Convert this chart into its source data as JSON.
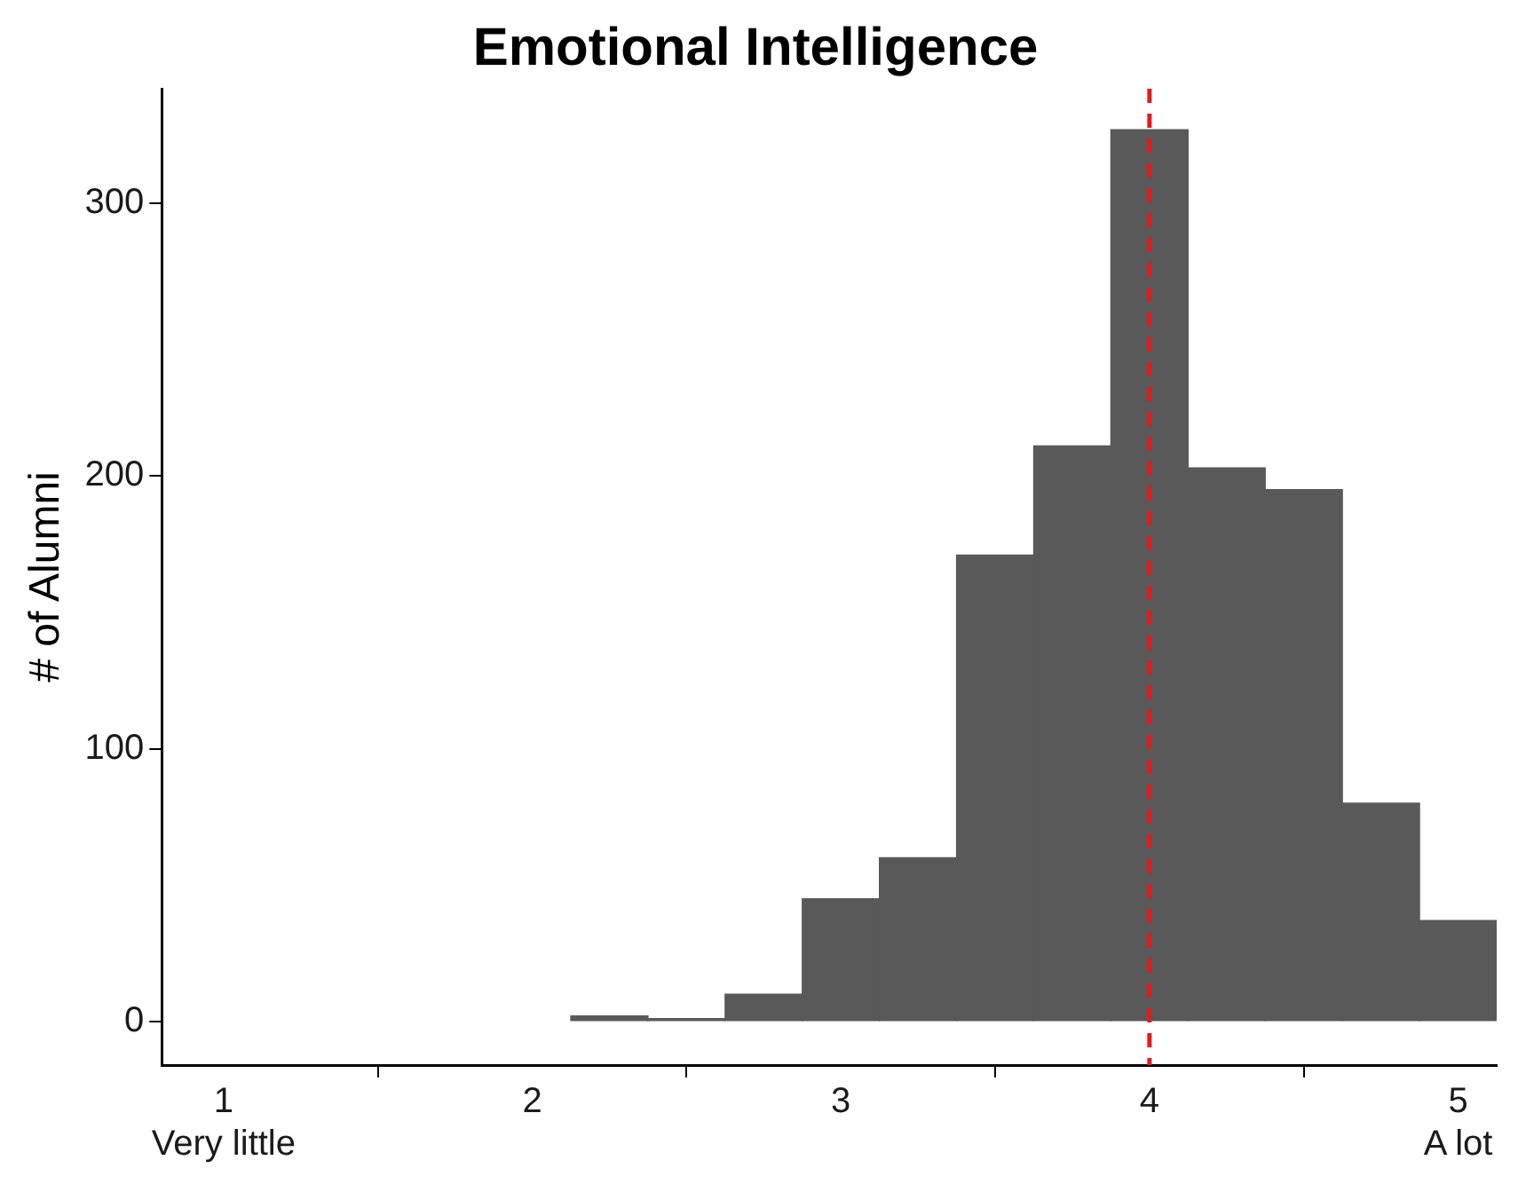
{
  "chart_data": {
    "type": "histogram",
    "title": "Emotional Intelligence",
    "ylabel": "# of Alumni",
    "bins": [
      2.125,
      2.375,
      2.625,
      2.875,
      3.125,
      3.375,
      3.625,
      3.875,
      4.125,
      4.375,
      4.625,
      4.875,
      5.125
    ],
    "values": [
      2,
      1,
      10,
      45,
      60,
      171,
      211,
      327,
      203,
      195,
      80,
      37
    ],
    "color": "#595959",
    "xlim": [
      0.8,
      5.125
    ],
    "xticks": [
      {
        "value": 1,
        "label": "1\nVery little"
      },
      2,
      3,
      4,
      {
        "value": 5,
        "label": "5\nA lot"
      }
    ],
    "ylim": [
      -16,
      342
    ],
    "yticks": [
      0,
      100,
      200,
      300
    ],
    "ref_lines": [
      {
        "axis": "x",
        "value": 4,
        "color": "#e41a1c",
        "line_style": "dashed"
      }
    ],
    "grid": false,
    "legend": false
  }
}
